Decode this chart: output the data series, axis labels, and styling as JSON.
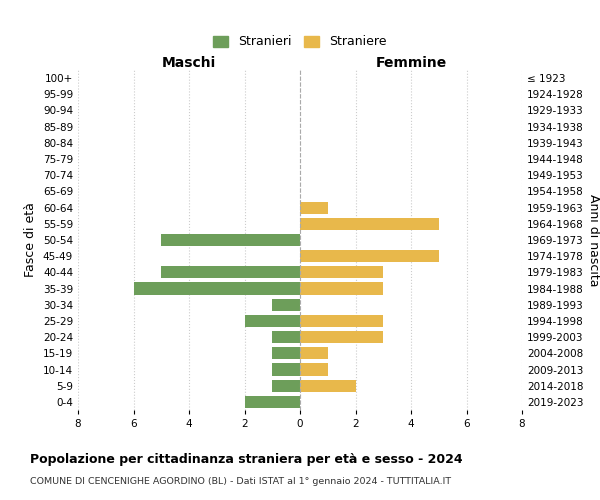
{
  "age_groups": [
    "100+",
    "95-99",
    "90-94",
    "85-89",
    "80-84",
    "75-79",
    "70-74",
    "65-69",
    "60-64",
    "55-59",
    "50-54",
    "45-49",
    "40-44",
    "35-39",
    "30-34",
    "25-29",
    "20-24",
    "15-19",
    "10-14",
    "5-9",
    "0-4"
  ],
  "birth_years": [
    "≤ 1923",
    "1924-1928",
    "1929-1933",
    "1934-1938",
    "1939-1943",
    "1944-1948",
    "1949-1953",
    "1954-1958",
    "1959-1963",
    "1964-1968",
    "1969-1973",
    "1974-1978",
    "1979-1983",
    "1984-1988",
    "1989-1993",
    "1994-1998",
    "1999-2003",
    "2004-2008",
    "2009-2013",
    "2014-2018",
    "2019-2023"
  ],
  "maschi": [
    0,
    0,
    0,
    0,
    0,
    0,
    0,
    0,
    0,
    0,
    5,
    0,
    5,
    6,
    1,
    2,
    1,
    1,
    1,
    1,
    2
  ],
  "femmine": [
    0,
    0,
    0,
    0,
    0,
    0,
    0,
    0,
    1,
    5,
    0,
    5,
    3,
    3,
    0,
    3,
    3,
    1,
    1,
    2,
    0
  ],
  "maschi_color": "#6d9e5a",
  "femmine_color": "#e8b84b",
  "xlim": 8,
  "title": "Popolazione per cittadinanza straniera per età e sesso - 2024",
  "subtitle": "COMUNE DI CENCENIGHE AGORDINO (BL) - Dati ISTAT al 1° gennaio 2024 - TUTTITALIA.IT",
  "legend_maschi": "Stranieri",
  "legend_femmine": "Straniere",
  "xlabel_maschi": "Maschi",
  "xlabel_femmine": "Femmine",
  "ylabel_left": "Fasce di età",
  "ylabel_right": "Anni di nascita",
  "bg_color": "#ffffff",
  "grid_color": "#cccccc",
  "tick_fontsize": 7.5,
  "label_fontsize": 9
}
